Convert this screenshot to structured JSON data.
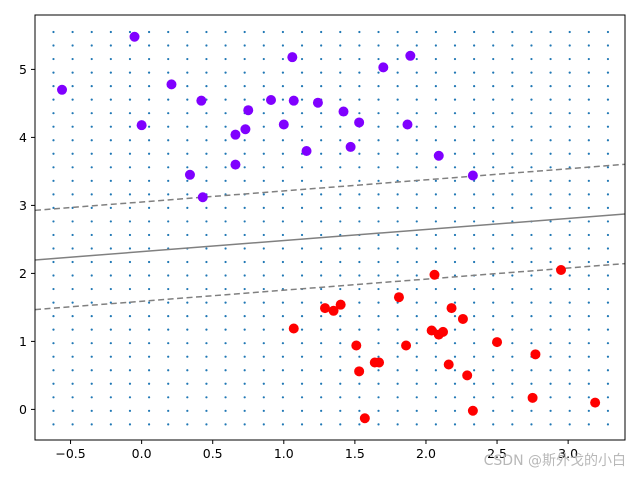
{
  "chart_data": {
    "type": "scatter",
    "title": "",
    "xlabel": "",
    "ylabel": "",
    "xlim": [
      -0.75,
      3.4
    ],
    "ylim": [
      -0.45,
      5.8
    ],
    "xticks": [
      -0.5,
      0.0,
      0.5,
      1.0,
      1.5,
      2.0,
      2.5,
      3.0
    ],
    "xtick_labels": [
      "−0.5",
      "0.0",
      "0.5",
      "1.0",
      "1.5",
      "2.0",
      "2.5",
      "3.0"
    ],
    "yticks": [
      0,
      1,
      2,
      3,
      4,
      5
    ],
    "ytick_labels": [
      "0",
      "1",
      "2",
      "3",
      "4",
      "5"
    ],
    "grid": false,
    "legend": "none",
    "class_colors": {
      "class_0": "#ff0000",
      "class_1": "#8000ff"
    },
    "series": [
      {
        "class": "class_1",
        "color": "#8000ff",
        "points": [
          [
            -0.56,
            4.7
          ],
          [
            -0.05,
            5.48
          ],
          [
            0.0,
            4.18
          ],
          [
            0.21,
            4.78
          ],
          [
            0.34,
            3.45
          ],
          [
            0.42,
            4.54
          ],
          [
            0.43,
            3.12
          ],
          [
            0.66,
            4.04
          ],
          [
            0.66,
            3.6
          ],
          [
            0.73,
            4.12
          ],
          [
            0.75,
            4.4
          ],
          [
            0.91,
            4.55
          ],
          [
            1.0,
            4.19
          ],
          [
            1.06,
            5.18
          ],
          [
            1.07,
            4.54
          ],
          [
            1.16,
            3.8
          ],
          [
            1.24,
            4.51
          ],
          [
            1.42,
            4.38
          ],
          [
            1.47,
            3.86
          ],
          [
            1.53,
            4.22
          ],
          [
            1.7,
            5.03
          ],
          [
            1.87,
            4.19
          ],
          [
            1.89,
            5.2
          ],
          [
            2.09,
            3.73
          ],
          [
            2.33,
            3.44
          ]
        ]
      },
      {
        "class": "class_0",
        "color": "#ff0000",
        "points": [
          [
            1.07,
            1.19
          ],
          [
            1.29,
            1.49
          ],
          [
            1.35,
            1.45
          ],
          [
            1.4,
            1.54
          ],
          [
            1.51,
            0.94
          ],
          [
            1.53,
            0.56
          ],
          [
            1.57,
            -0.13
          ],
          [
            1.64,
            0.69
          ],
          [
            1.67,
            0.69
          ],
          [
            1.81,
            1.65
          ],
          [
            1.86,
            0.94
          ],
          [
            2.04,
            1.16
          ],
          [
            2.06,
            1.98
          ],
          [
            2.09,
            1.1
          ],
          [
            2.12,
            1.14
          ],
          [
            2.16,
            0.66
          ],
          [
            2.18,
            1.49
          ],
          [
            2.26,
            1.33
          ],
          [
            2.29,
            0.5
          ],
          [
            2.33,
            -0.02
          ],
          [
            2.5,
            0.99
          ],
          [
            2.75,
            0.17
          ],
          [
            2.77,
            0.81
          ],
          [
            2.95,
            2.05
          ],
          [
            3.19,
            0.1
          ]
        ]
      }
    ],
    "decision_boundary": {
      "decision_line": {
        "slope": 0.163,
        "intercept": 2.32,
        "style": "solid"
      },
      "margins": [
        {
          "slope": 0.163,
          "intercept": 3.05,
          "style": "dashed"
        },
        {
          "slope": 0.163,
          "intercept": 1.59,
          "style": "dashed"
        }
      ],
      "line_color": "#808080"
    },
    "background_grid_points": {
      "x_start": -0.62,
      "x_end": 3.28,
      "x_count": 30,
      "y_start": -0.22,
      "y_end": 5.55,
      "y_count": 30,
      "color": "#1f77b4"
    }
  },
  "watermark": "CSDN @斯外戈的小白"
}
